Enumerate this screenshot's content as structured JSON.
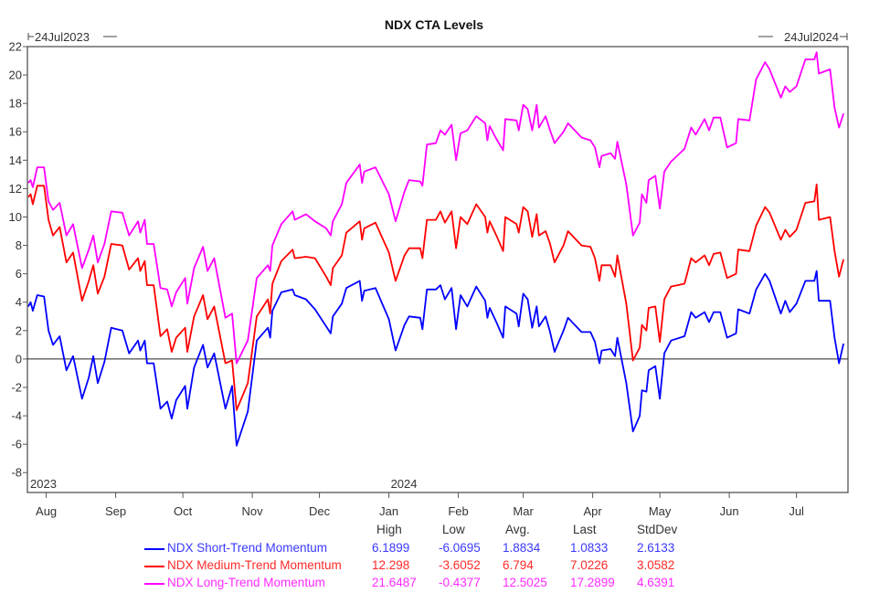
{
  "chart_data": {
    "type": "line",
    "title": "NDX CTA Levels",
    "range_start_label": "24Jul2023",
    "range_end_label": "24Jul2024",
    "year_labels": [
      {
        "label": "2023",
        "date": "2023-07-24"
      },
      {
        "label": "2024",
        "date": "2024-01-01"
      }
    ],
    "x_ticks": [
      {
        "label": "Aug",
        "date": "2023-08-01"
      },
      {
        "label": "Sep",
        "date": "2023-09-01"
      },
      {
        "label": "Oct",
        "date": "2023-10-01"
      },
      {
        "label": "Nov",
        "date": "2023-11-01"
      },
      {
        "label": "Dec",
        "date": "2023-12-01"
      },
      {
        "label": "Jan",
        "date": "2024-01-01"
      },
      {
        "label": "Feb",
        "date": "2024-02-01"
      },
      {
        "label": "Mar",
        "date": "2024-03-01"
      },
      {
        "label": "Apr",
        "date": "2024-04-01"
      },
      {
        "label": "May",
        "date": "2024-05-01"
      },
      {
        "label": "Jun",
        "date": "2024-06-01"
      },
      {
        "label": "Jul",
        "date": "2024-07-01"
      }
    ],
    "xlim": [
      "2023-07-24",
      "2024-07-24"
    ],
    "ylim": [
      -9.4,
      22
    ],
    "y_ticks": [
      -8,
      -6,
      -4,
      -2,
      0,
      2,
      4,
      6,
      8,
      10,
      12,
      14,
      16,
      18,
      20,
      22
    ],
    "zero_line": true,
    "grid": false,
    "x": [
      "2023-07-24",
      "2023-07-25",
      "2023-07-26",
      "2023-07-28",
      "2023-07-31",
      "2023-08-02",
      "2023-08-04",
      "2023-08-07",
      "2023-08-10",
      "2023-08-13",
      "2023-08-17",
      "2023-08-20",
      "2023-08-22",
      "2023-08-24",
      "2023-08-27",
      "2023-08-30",
      "2023-09-04",
      "2023-09-07",
      "2023-09-11",
      "2023-09-12",
      "2023-09-14",
      "2023-09-15",
      "2023-09-18",
      "2023-09-21",
      "2023-09-24",
      "2023-09-26",
      "2023-09-28",
      "2023-10-02",
      "2023-10-03",
      "2023-10-06",
      "2023-10-10",
      "2023-10-12",
      "2023-10-15",
      "2023-10-20",
      "2023-10-23",
      "2023-10-25",
      "2023-10-30",
      "2023-11-03",
      "2023-11-08",
      "2023-11-09",
      "2023-11-10",
      "2023-11-14",
      "2023-11-19",
      "2023-11-20",
      "2023-11-25",
      "2023-11-29",
      "2023-12-04",
      "2023-12-06",
      "2023-12-07",
      "2023-12-11",
      "2023-12-13",
      "2023-12-19",
      "2023-12-20",
      "2023-12-21",
      "2023-12-26",
      "2024-01-01",
      "2024-01-04",
      "2024-01-08",
      "2024-01-10",
      "2024-01-15",
      "2024-01-16",
      "2024-01-18",
      "2024-01-22",
      "2024-01-24",
      "2024-01-26",
      "2024-01-29",
      "2024-01-31",
      "2024-02-02",
      "2024-02-05",
      "2024-02-09",
      "2024-02-13",
      "2024-02-14",
      "2024-02-15",
      "2024-02-18",
      "2024-02-21",
      "2024-02-22",
      "2024-02-27",
      "2024-02-28",
      "2024-03-01",
      "2024-03-03",
      "2024-03-05",
      "2024-03-07",
      "2024-03-08",
      "2024-03-11",
      "2024-03-13",
      "2024-03-15",
      "2024-03-19",
      "2024-03-21",
      "2024-03-27",
      "2024-03-31",
      "2024-04-02",
      "2024-04-04",
      "2024-04-05",
      "2024-04-09",
      "2024-04-11",
      "2024-04-12",
      "2024-04-16",
      "2024-04-19",
      "2024-04-22",
      "2024-04-23",
      "2024-04-25",
      "2024-04-26",
      "2024-04-29",
      "2024-05-01",
      "2024-05-03",
      "2024-05-06",
      "2024-05-12",
      "2024-05-15",
      "2024-05-17",
      "2024-05-21",
      "2024-05-23",
      "2024-05-25",
      "2024-05-28",
      "2024-05-31",
      "2024-06-04",
      "2024-06-05",
      "2024-06-10",
      "2024-06-13",
      "2024-06-17",
      "2024-06-19",
      "2024-06-24",
      "2024-06-26",
      "2024-06-28",
      "2024-07-01",
      "2024-07-05",
      "2024-07-09",
      "2024-07-10",
      "2024-07-11",
      "2024-07-16",
      "2024-07-18",
      "2024-07-20",
      "2024-07-22"
    ],
    "series": [
      {
        "name": "NDX Short-Trend Momentum",
        "color": "#0000ff",
        "text_color": "#3a3aff",
        "values": [
          3.7,
          4.0,
          3.4,
          4.5,
          4.4,
          2.0,
          1.0,
          1.6,
          -0.8,
          0.2,
          -2.8,
          -1.3,
          0.2,
          -1.7,
          -0.2,
          2.2,
          2.0,
          0.4,
          1.3,
          0.6,
          1.3,
          -0.3,
          -0.3,
          -3.5,
          -3.0,
          -4.2,
          -2.9,
          -1.9,
          -3.5,
          -0.6,
          1.0,
          -0.6,
          0.4,
          -3.5,
          -1.9,
          -6.1,
          -3.7,
          1.3,
          2.2,
          1.5,
          3.4,
          4.7,
          4.9,
          4.5,
          4.2,
          3.5,
          2.3,
          1.8,
          3.0,
          3.9,
          5.0,
          5.5,
          4.1,
          4.8,
          5.0,
          2.8,
          0.6,
          2.4,
          3.0,
          2.9,
          2.1,
          4.9,
          4.9,
          5.2,
          4.2,
          5.0,
          2.1,
          4.5,
          3.7,
          5.1,
          4.1,
          2.9,
          3.6,
          2.6,
          1.5,
          3.7,
          3.2,
          2.3,
          4.6,
          4.2,
          2.2,
          3.7,
          2.3,
          3.0,
          1.9,
          0.5,
          2.0,
          2.9,
          1.9,
          1.9,
          1.2,
          -0.3,
          0.6,
          0.7,
          0.2,
          1.5,
          -1.7,
          -5.1,
          -4.0,
          -2.2,
          -2.3,
          -0.8,
          -0.5,
          -2.8,
          0.4,
          1.3,
          1.6,
          3.3,
          2.9,
          3.3,
          2.6,
          3.3,
          3.3,
          1.5,
          1.8,
          3.5,
          3.2,
          4.9,
          6.0,
          5.5,
          3.2,
          4.1,
          3.3,
          3.9,
          5.5,
          5.5,
          6.2,
          4.1,
          4.1,
          1.5,
          -0.3,
          1.08
        ],
        "stats": {
          "high": "6.1899",
          "low": "-6.0695",
          "avg": "1.8834",
          "last": "1.0833",
          "stddev": "2.6133"
        }
      },
      {
        "name": "NDX Medium-Trend Momentum",
        "color": "#ff0000",
        "text_color": "#ff2a2a",
        "values": [
          11.4,
          11.6,
          10.9,
          12.2,
          12.2,
          9.8,
          8.7,
          9.3,
          6.8,
          7.5,
          4.1,
          5.5,
          6.6,
          4.6,
          5.8,
          8.1,
          8.0,
          6.3,
          7.1,
          6.2,
          6.9,
          5.2,
          5.2,
          1.6,
          2.1,
          0.5,
          1.5,
          2.2,
          0.5,
          3.0,
          4.5,
          2.8,
          3.7,
          -0.3,
          -0.1,
          -3.6,
          -1.7,
          3.0,
          4.2,
          3.2,
          5.3,
          6.9,
          7.7,
          7.1,
          7.2,
          7.1,
          5.8,
          5.2,
          6.4,
          7.3,
          8.9,
          9.7,
          8.4,
          9.2,
          9.6,
          7.5,
          5.5,
          7.3,
          7.8,
          7.8,
          7.1,
          9.8,
          9.8,
          10.4,
          9.6,
          10.4,
          7.8,
          10.0,
          9.5,
          10.9,
          10.0,
          8.9,
          9.7,
          8.7,
          7.6,
          10.0,
          9.5,
          8.9,
          10.7,
          10.4,
          8.6,
          10.2,
          8.7,
          9.0,
          8.1,
          6.8,
          8.0,
          9.0,
          8.0,
          7.9,
          7.1,
          5.5,
          6.6,
          6.6,
          5.8,
          7.3,
          3.9,
          -0.1,
          0.8,
          2.4,
          2.0,
          3.6,
          3.7,
          1.2,
          4.2,
          5.1,
          5.3,
          7.1,
          6.8,
          7.3,
          6.6,
          7.4,
          7.5,
          5.7,
          6.0,
          7.7,
          7.6,
          9.4,
          10.7,
          10.3,
          8.4,
          9.1,
          8.6,
          9.1,
          11.0,
          11.1,
          12.3,
          9.8,
          10.0,
          7.6,
          5.8,
          7.02
        ],
        "stats": {
          "high": "12.298",
          "low": "-3.6052",
          "avg": "6.794",
          "last": "7.0226",
          "stddev": "3.0582"
        }
      },
      {
        "name": "NDX Long-Trend Momentum",
        "color": "#ff00ff",
        "text_color": "#ff2aff",
        "values": [
          12.4,
          12.6,
          12.1,
          13.5,
          13.5,
          11.1,
          10.5,
          11.0,
          8.7,
          9.5,
          6.4,
          7.7,
          8.7,
          6.8,
          8.1,
          10.4,
          10.3,
          8.7,
          9.7,
          8.9,
          9.8,
          8.1,
          8.1,
          5.0,
          4.9,
          3.7,
          4.7,
          5.7,
          3.9,
          6.4,
          7.9,
          6.2,
          7.1,
          2.9,
          3.2,
          -0.3,
          1.3,
          5.7,
          6.6,
          6.2,
          8.0,
          9.5,
          10.4,
          9.8,
          10.2,
          9.7,
          9.2,
          8.7,
          9.7,
          10.9,
          12.4,
          13.7,
          12.4,
          13.2,
          13.5,
          11.6,
          9.7,
          11.8,
          12.6,
          12.5,
          12.2,
          15.1,
          15.2,
          16.1,
          15.8,
          16.5,
          14.0,
          15.9,
          16.1,
          17.1,
          16.6,
          15.4,
          16.4,
          15.5,
          14.7,
          16.9,
          16.8,
          16.1,
          17.9,
          17.6,
          16.1,
          17.9,
          16.3,
          17.1,
          16.1,
          15.2,
          16.0,
          16.6,
          15.6,
          15.4,
          14.9,
          13.5,
          14.3,
          14.5,
          14.1,
          15.3,
          12.3,
          8.7,
          9.6,
          11.6,
          11.0,
          12.6,
          12.9,
          10.6,
          13.2,
          13.9,
          14.8,
          16.3,
          15.8,
          16.9,
          16.1,
          17.0,
          17.0,
          14.9,
          15.2,
          16.9,
          16.8,
          19.7,
          20.9,
          20.4,
          18.4,
          19.2,
          18.8,
          19.2,
          21.1,
          21.1,
          21.6,
          20.1,
          20.4,
          17.7,
          16.3,
          17.29
        ],
        "stats": {
          "high": "21.6487",
          "low": "-0.4377",
          "avg": "12.5025",
          "last": "17.2899",
          "stddev": "4.6391"
        }
      }
    ],
    "legend": {
      "placement": "bottom",
      "headers": {
        "high": "High",
        "low": "Low",
        "avg": "Avg.",
        "last": "Last",
        "stddev": "StdDev"
      }
    }
  }
}
